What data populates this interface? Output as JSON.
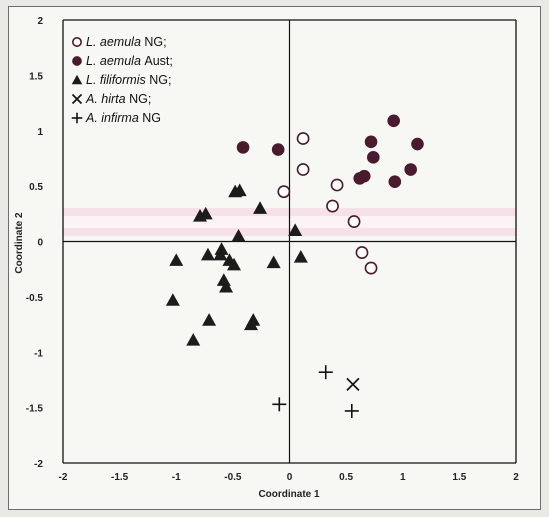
{
  "chart_data": {
    "type": "scatter",
    "title": "",
    "xlabel": "Coordinate 1",
    "ylabel": "Coordinate 2",
    "xlim": [
      -2,
      2
    ],
    "ylim": [
      -2,
      2
    ],
    "xticks": [
      "-2",
      "-1.5",
      "-1",
      "-0.5",
      "0",
      "0.5",
      "1",
      "1.5",
      "2"
    ],
    "yticks": [
      "2",
      "1.5",
      "1",
      "0.5",
      "0",
      "-0.5",
      "-1",
      "-1.5",
      "-2"
    ],
    "grid": false,
    "legend_position": "top-left",
    "series": [
      {
        "name": "L. aemula NG;",
        "species": "L. aemula",
        "suffix": "NG;",
        "marker": "open-circle",
        "x": [
          0.12,
          0.12,
          0.42,
          0.38,
          0.57,
          0.64,
          0.72,
          -0.05
        ],
        "y": [
          0.93,
          0.65,
          0.51,
          0.32,
          0.18,
          -0.1,
          -0.24,
          0.45
        ]
      },
      {
        "name": "L. aemula Aust;",
        "species": "L. aemula",
        "suffix": "Aust;",
        "marker": "filled-circle",
        "x": [
          -0.41,
          -0.1,
          0.72,
          0.92,
          1.13,
          0.74,
          0.66,
          0.62,
          0.93,
          1.07
        ],
        "y": [
          0.85,
          0.83,
          0.9,
          1.09,
          0.88,
          0.76,
          0.59,
          0.57,
          0.54,
          0.65
        ]
      },
      {
        "name": "L. filiformis NG;",
        "species": "L. filiformis",
        "suffix": "NG;",
        "marker": "filled-triangle",
        "x": [
          -0.44,
          -0.48,
          -0.26,
          -0.79,
          -0.74,
          -0.45,
          -0.6,
          0.05,
          -1.0,
          -0.72,
          -0.61,
          -0.53,
          -0.49,
          -0.14,
          0.1,
          -0.58,
          -0.56,
          -1.03,
          -0.71,
          -0.32,
          -0.34,
          -0.85
        ],
        "y": [
          0.46,
          0.45,
          0.3,
          0.23,
          0.25,
          0.05,
          -0.07,
          0.1,
          -0.17,
          -0.12,
          -0.12,
          -0.17,
          -0.21,
          -0.19,
          -0.14,
          -0.35,
          -0.41,
          -0.53,
          -0.71,
          -0.71,
          -0.75,
          -0.89
        ]
      },
      {
        "name": "A. hirta NG;",
        "species": "A. hirta",
        "suffix": "NG;",
        "marker": "x",
        "x": [
          0.56
        ],
        "y": [
          -1.29
        ]
      },
      {
        "name": "A. infirma NG",
        "species": "A. infirma",
        "suffix": "NG",
        "marker": "plus",
        "x": [
          0.32,
          -0.09,
          0.55
        ],
        "y": [
          -1.18,
          -1.47,
          -1.53
        ]
      }
    ],
    "colors": {
      "marker_dark": "#4a1a2e",
      "triangle": "#1c1c1c",
      "highlight_band": "#f2c6d6",
      "axis": "#111111"
    }
  }
}
